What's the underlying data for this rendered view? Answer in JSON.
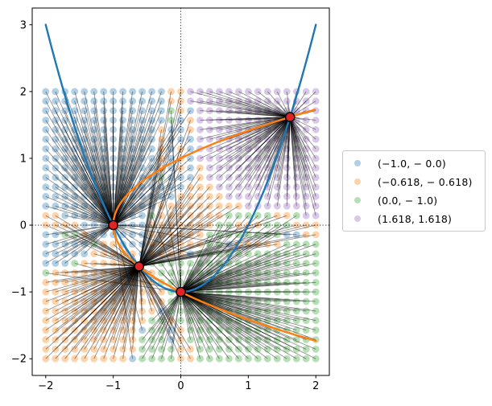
{
  "figure": {
    "background_color": "#ffffff"
  },
  "chart_data": {
    "type": "scatter",
    "title": "",
    "xlabel": "",
    "ylabel": "",
    "xlim": [
      -2.2,
      2.2
    ],
    "ylim": [
      -2.25,
      3.25
    ],
    "grid_on": false,
    "x_tick_values": [
      -2,
      -1,
      0,
      1,
      2
    ],
    "x_tick_labels": [
      "−2",
      "−1",
      "0",
      "1",
      "2"
    ],
    "y_tick_values": [
      -2,
      -1,
      0,
      1,
      2,
      3
    ],
    "y_tick_labels": [
      "−2",
      "−1",
      "0",
      "1",
      "2",
      "3"
    ],
    "initial_point_grid": {
      "x_min": -2,
      "x_max": 2,
      "y_min": -2,
      "y_max": 2,
      "points_per_axis": 29,
      "note": "each grid point is colored by the root it converges to; a thin dark segment joins the point to that root"
    },
    "system": [
      "y = x^2 - 1",
      "x = y^2 - 1"
    ],
    "solver": "newton",
    "roots": [
      {
        "label": "(−1.0, − 0.0)",
        "x": -1.0,
        "y": 0.0,
        "basin_color": "#b1cfe5"
      },
      {
        "label": "(−0.618, − 0.618)",
        "x": -0.6180339887,
        "y": -0.6180339887,
        "basin_color": "#ffd3a9"
      },
      {
        "label": "(0.0, − 1.0)",
        "x": 0.0,
        "y": -1.0,
        "basin_color": "#b6dfb6"
      },
      {
        "label": "(1.618, 1.618)",
        "x": 1.6180339887,
        "y": 1.6180339887,
        "basin_color": "#d9c9e8"
      }
    ],
    "root_marker": {
      "color": "#e02325",
      "edge_color": "#000000"
    },
    "curves": [
      {
        "equation": "y = x^2 - 1",
        "color": "#1f77b4",
        "x_range": [
          -2,
          2
        ]
      },
      {
        "equation": "x = y^2 - 1",
        "color": "#ff7f0e",
        "y_range": [
          -1.7320508,
          1.7320508
        ]
      }
    ],
    "convergence_segments": {
      "color": "#000000",
      "opacity": 0.45
    },
    "zero_lines": {
      "x": 0,
      "y": 0,
      "style": "dotted",
      "color": "#1a1a1a"
    },
    "legend": {
      "location": "center right, outside axes",
      "entries_from": "roots"
    }
  }
}
